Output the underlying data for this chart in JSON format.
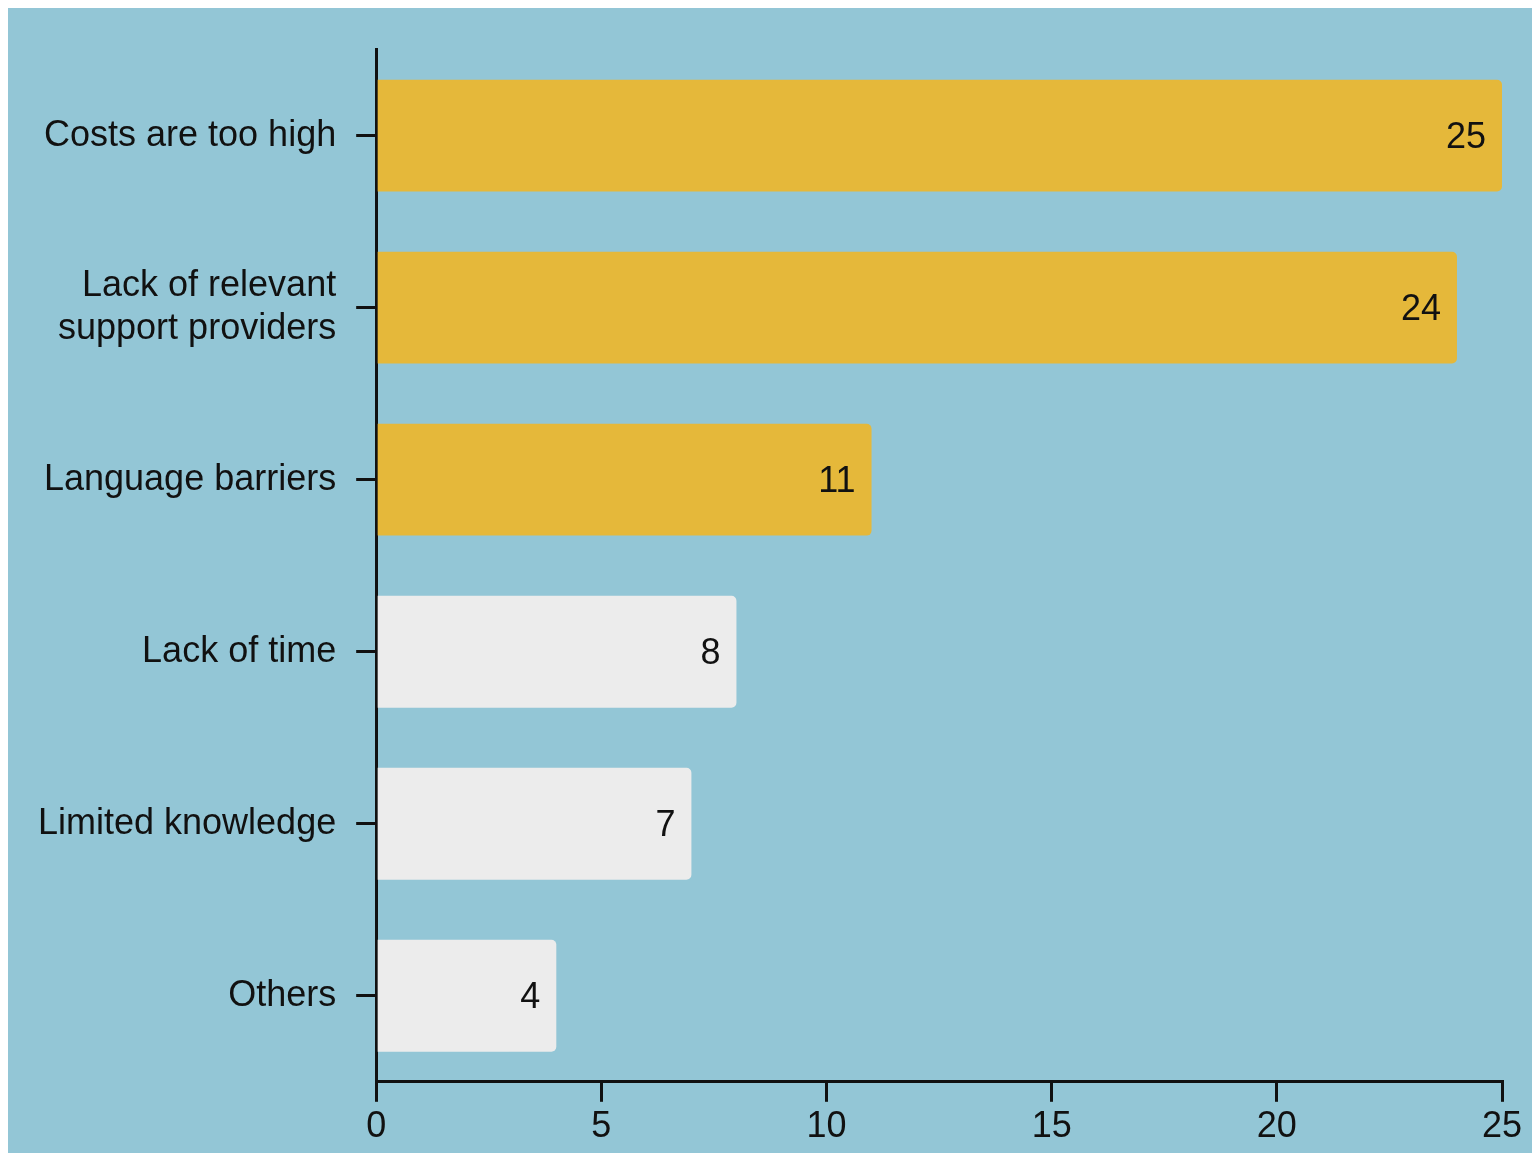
{
  "chart_data": {
    "type": "bar",
    "orientation": "horizontal",
    "categories": [
      "Costs are too high",
      "Lack of relevant support providers",
      "Language barriers",
      "Lack of time",
      "Limited knowledge",
      "Others"
    ],
    "values": [
      25,
      24,
      11,
      8,
      7,
      4
    ],
    "colors": [
      "#e5b83a",
      "#e5b83a",
      "#e5b83a",
      "#ececec",
      "#ececec",
      "#ececec"
    ],
    "xlim": [
      0,
      25
    ],
    "xticks": [
      0,
      5,
      10,
      15,
      20,
      25
    ],
    "grid": false,
    "legend": false,
    "data_labels": true
  }
}
